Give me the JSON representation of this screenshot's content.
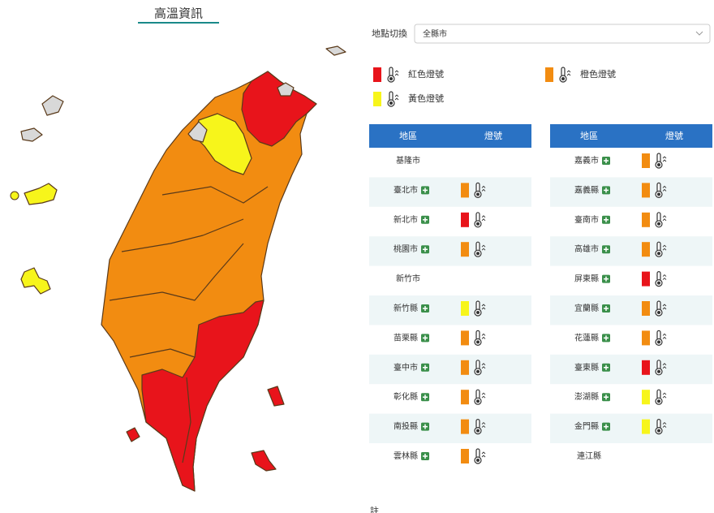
{
  "header": {
    "title": "高溫資訊"
  },
  "location": {
    "label": "地點切換",
    "selected": "全縣市"
  },
  "legend": [
    {
      "label": "紅色燈號",
      "color": "#e8141b"
    },
    {
      "label": "橙色燈號",
      "color": "#f28c11"
    },
    {
      "label": "黃色燈號",
      "color": "#f7f51b"
    }
  ],
  "tables": [
    {
      "columns": [
        "地區",
        "燈號"
      ],
      "rows": [
        {
          "name": "基隆市",
          "expandable": false,
          "color": null
        },
        {
          "name": "臺北市",
          "expandable": true,
          "color": "#f28c11"
        },
        {
          "name": "新北市",
          "expandable": true,
          "color": "#e8141b"
        },
        {
          "name": "桃園市",
          "expandable": true,
          "color": "#f28c11"
        },
        {
          "name": "新竹市",
          "expandable": false,
          "color": null
        },
        {
          "name": "新竹縣",
          "expandable": true,
          "color": "#f7f51b"
        },
        {
          "name": "苗栗縣",
          "expandable": true,
          "color": "#f28c11"
        },
        {
          "name": "臺中市",
          "expandable": true,
          "color": "#f28c11"
        },
        {
          "name": "彰化縣",
          "expandable": true,
          "color": "#f28c11"
        },
        {
          "name": "南投縣",
          "expandable": true,
          "color": "#f28c11"
        },
        {
          "name": "雲林縣",
          "expandable": true,
          "color": "#f28c11"
        }
      ]
    },
    {
      "columns": [
        "地區",
        "燈號"
      ],
      "rows": [
        {
          "name": "嘉義市",
          "expandable": true,
          "color": "#f28c11"
        },
        {
          "name": "嘉義縣",
          "expandable": true,
          "color": "#f28c11"
        },
        {
          "name": "臺南市",
          "expandable": true,
          "color": "#f28c11"
        },
        {
          "name": "高雄市",
          "expandable": true,
          "color": "#f28c11"
        },
        {
          "name": "屏東縣",
          "expandable": true,
          "color": "#e8141b"
        },
        {
          "name": "宜蘭縣",
          "expandable": true,
          "color": "#f28c11"
        },
        {
          "name": "花蓮縣",
          "expandable": true,
          "color": "#f28c11"
        },
        {
          "name": "臺東縣",
          "expandable": true,
          "color": "#e8141b"
        },
        {
          "name": "澎湖縣",
          "expandable": true,
          "color": "#f7f51b"
        },
        {
          "name": "金門縣",
          "expandable": true,
          "color": "#f7f51b"
        },
        {
          "name": "連江縣",
          "expandable": false,
          "color": null
        }
      ]
    }
  ],
  "note": "註"
}
